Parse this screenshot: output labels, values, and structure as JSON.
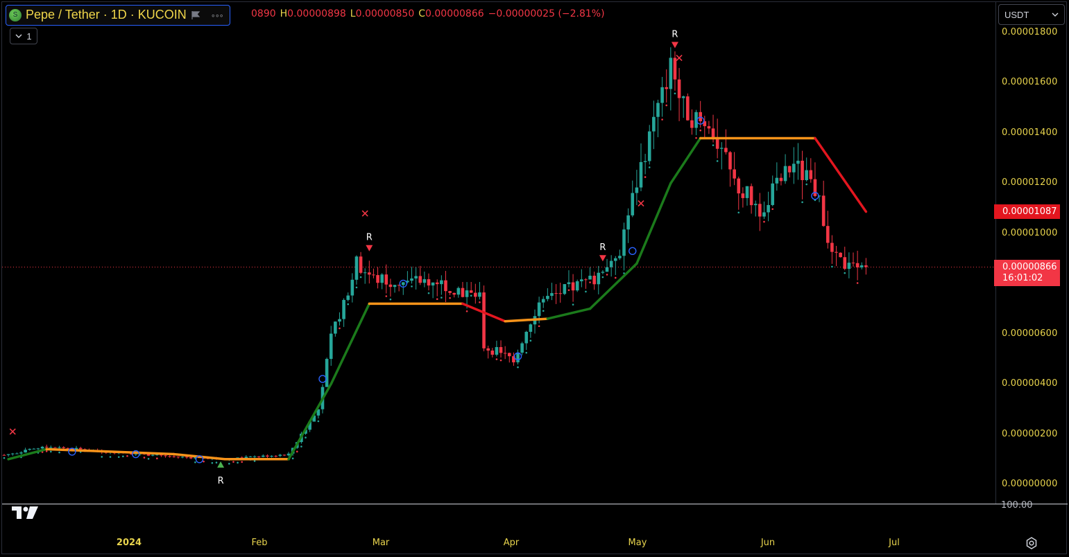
{
  "symbol": {
    "title": "Pepe / Tether · 1D · KUCOIN",
    "coin_glyph": "S",
    "icons": [
      "flag-icon",
      "more-dots-icon"
    ],
    "more_label": "◦◦◦"
  },
  "ohlc": {
    "open_value": "0890",
    "high_label": "H",
    "high_value": "0.00000898",
    "low_label": "L",
    "low_value": "0.00000850",
    "close_label": "C",
    "close_value": "0.00000866",
    "change": "−0.00000025 (−2.81%)"
  },
  "indicator_toggle": {
    "label": "1",
    "icon": "chevron-down-icon"
  },
  "currency_select": {
    "value": "USDT",
    "icon": "chevron-down-icon"
  },
  "price_axis": {
    "ticks": [
      "0.00001800",
      "0.00001600",
      "0.00001400",
      "0.00001200",
      "0.00001000",
      "0.00000600",
      "0.00000400",
      "0.00000200",
      "0.00000000"
    ],
    "sub_pane_tick": "100.00"
  },
  "price_tags": {
    "moving_average": "0.00001087",
    "last_price": "0.00000866",
    "countdown": "16:01:02"
  },
  "time_axis": {
    "ticks": [
      "2024",
      "Feb",
      "Mar",
      "Apr",
      "May",
      "Jun",
      "Jul"
    ]
  },
  "colors": {
    "up": "#26a69a",
    "down": "#f23645",
    "ma_up": "#1b7a1b",
    "ma_flat": "#f7931a",
    "ma_down": "#e3161f",
    "axis_text": "#e8d44d",
    "marker_circle": "#2962ff",
    "signal_cross": "#f23645",
    "signal_buy": "#4caf50"
  },
  "chart_data": {
    "type": "candlestick",
    "symbol": "Pepe / Tether · 1D · KUCOIN",
    "y_unit": "USDT",
    "ylim": [
      0,
      1.8e-05
    ],
    "x_ticks": [
      "2024",
      "Feb",
      "Mar",
      "Apr",
      "May",
      "Jun",
      "Jul"
    ],
    "close_path": [
      {
        "date": "2023-12-23",
        "close": 1.2e-06
      },
      {
        "date": "2024-01-01",
        "close": 1.5e-06
      },
      {
        "date": "2024-01-15",
        "close": 1.3e-06
      },
      {
        "date": "2024-01-31",
        "close": 1.1e-06
      },
      {
        "date": "2024-02-12",
        "close": 1e-06
      },
      {
        "date": "2024-02-27",
        "close": 1.2e-06
      },
      {
        "date": "2024-03-05",
        "close": 3e-06
      },
      {
        "date": "2024-03-08",
        "close": 5.8e-06
      },
      {
        "date": "2024-03-14",
        "close": 8.8e-06
      },
      {
        "date": "2024-03-18",
        "close": 8.2e-06
      },
      {
        "date": "2024-03-26",
        "close": 8e-06
      },
      {
        "date": "2024-04-01",
        "close": 8.2e-06
      },
      {
        "date": "2024-04-12",
        "close": 7.4e-06
      },
      {
        "date": "2024-04-13",
        "close": 5.5e-06
      },
      {
        "date": "2024-04-20",
        "close": 5e-06
      },
      {
        "date": "2024-04-26",
        "close": 7.3e-06
      },
      {
        "date": "2024-05-09",
        "close": 8.2e-06
      },
      {
        "date": "2024-05-15",
        "close": 9.4e-06
      },
      {
        "date": "2024-05-22",
        "close": 1.4e-05
      },
      {
        "date": "2024-05-27",
        "close": 1.65e-05
      },
      {
        "date": "2024-05-30",
        "close": 1.5e-05
      },
      {
        "date": "2024-06-06",
        "close": 1.4e-05
      },
      {
        "date": "2024-06-11",
        "close": 1.2e-05
      },
      {
        "date": "2024-06-17",
        "close": 1.1e-05
      },
      {
        "date": "2024-06-25",
        "close": 1.28e-05
      },
      {
        "date": "2024-07-01",
        "close": 1.15e-05
      },
      {
        "date": "2024-07-04",
        "close": 9e-06
      },
      {
        "date": "2024-07-10",
        "close": 8.5e-06
      },
      {
        "date": "2024-07-12",
        "close": 8.66e-06
      }
    ],
    "moving_average": [
      {
        "date": "2023-12-23",
        "value": 1e-06
      },
      {
        "date": "2024-01-01",
        "value": 1.4e-06
      },
      {
        "date": "2024-01-31",
        "value": 1.2e-06
      },
      {
        "date": "2024-02-12",
        "value": 1e-06
      },
      {
        "date": "2024-02-27",
        "value": 1e-06
      },
      {
        "date": "2024-03-08",
        "value": 4e-06
      },
      {
        "date": "2024-03-17",
        "value": 7.2e-06
      },
      {
        "date": "2024-04-08",
        "value": 7.2e-06
      },
      {
        "date": "2024-04-18",
        "value": 6.5e-06
      },
      {
        "date": "2024-04-28",
        "value": 6.6e-06
      },
      {
        "date": "2024-05-08",
        "value": 7e-06
      },
      {
        "date": "2024-05-19",
        "value": 8.8e-06
      },
      {
        "date": "2024-05-27",
        "value": 1.2e-05
      },
      {
        "date": "2024-06-03",
        "value": 1.38e-05
      },
      {
        "date": "2024-06-30",
        "value": 1.38e-05
      },
      {
        "date": "2024-07-12",
        "value": 1.087e-05
      }
    ],
    "signals": [
      {
        "type": "cross",
        "date": "2023-12-24",
        "price": 2.1e-06
      },
      {
        "type": "buy_R",
        "date": "2024-02-11",
        "price": 8e-07
      },
      {
        "type": "cross",
        "date": "2024-03-16",
        "price": 1.08e-05
      },
      {
        "type": "sell_R",
        "date": "2024-03-17",
        "price": 9.4e-06
      },
      {
        "type": "sell_R",
        "date": "2024-05-11",
        "price": 9e-06
      },
      {
        "type": "cross",
        "date": "2024-05-20",
        "price": 1.12e-05
      },
      {
        "type": "sell_R",
        "date": "2024-05-28",
        "price": 1.75e-05
      },
      {
        "type": "cross",
        "date": "2024-05-29",
        "price": 1.7e-05
      }
    ],
    "circles": [
      {
        "date": "2024-01-07",
        "price": 1.3e-06
      },
      {
        "date": "2024-01-22",
        "price": 1.2e-06
      },
      {
        "date": "2024-02-06",
        "price": 1e-06
      },
      {
        "date": "2024-03-06",
        "price": 4.2e-06
      },
      {
        "date": "2024-03-25",
        "price": 8e-06
      },
      {
        "date": "2024-04-21",
        "price": 5.1e-06
      },
      {
        "date": "2024-05-18",
        "price": 9.3e-06
      },
      {
        "date": "2024-06-03",
        "price": 1.45e-05
      },
      {
        "date": "2024-06-30",
        "price": 1.15e-05
      }
    ]
  }
}
